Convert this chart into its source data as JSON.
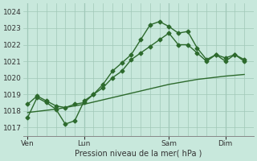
{
  "bg_color": "#c8e8dc",
  "grid_color": "#a0c8b8",
  "line_color": "#2d6a2d",
  "xlabel": "Pression niveau de la mer( hPa )",
  "ylim": [
    1016.5,
    1024.5
  ],
  "yticks": [
    1017,
    1018,
    1019,
    1020,
    1021,
    1022,
    1023,
    1024
  ],
  "xtick_labels": [
    "Ven",
    "Lun",
    "Sam",
    "Dim"
  ],
  "xtick_positions": [
    0,
    6,
    15,
    21
  ],
  "vline_major": [
    0,
    6,
    15,
    21
  ],
  "xlim": [
    -0.5,
    24
  ],
  "num_minor_vlines": 25,
  "series": [
    {
      "x": [
        0,
        1,
        2,
        3,
        4,
        5,
        6,
        7,
        8,
        9,
        10,
        11,
        12,
        13,
        14,
        15,
        16,
        17,
        18,
        19,
        20,
        21,
        22,
        23
      ],
      "y": [
        1017.6,
        1018.8,
        1018.5,
        1018.1,
        1017.2,
        1017.4,
        1018.6,
        1019.0,
        1019.6,
        1020.4,
        1020.9,
        1021.4,
        1022.3,
        1023.2,
        1023.4,
        1023.1,
        1022.7,
        1022.8,
        1021.8,
        1021.1,
        1021.4,
        1021.0,
        1021.4,
        1021.1
      ],
      "marker": "D",
      "ms": 2.5,
      "lw": 1.0
    },
    {
      "x": [
        0,
        1,
        2,
        3,
        4,
        5,
        6,
        7,
        8,
        9,
        10,
        11,
        12,
        13,
        14,
        15,
        16,
        17,
        18,
        19,
        20,
        21,
        22,
        23
      ],
      "y": [
        1018.4,
        1018.9,
        1018.6,
        1018.3,
        1018.2,
        1018.4,
        1018.5,
        1019.0,
        1019.4,
        1020.0,
        1020.4,
        1021.1,
        1021.5,
        1021.9,
        1022.3,
        1022.7,
        1022.0,
        1022.0,
        1021.5,
        1021.0,
        1021.4,
        1021.2,
        1021.4,
        1021.0
      ],
      "marker": "D",
      "ms": 2.5,
      "lw": 1.0
    },
    {
      "x": [
        0,
        3,
        6,
        9,
        12,
        15,
        18,
        21,
        23
      ],
      "y": [
        1017.9,
        1018.1,
        1018.4,
        1018.8,
        1019.2,
        1019.6,
        1019.9,
        1020.1,
        1020.2
      ],
      "marker": null,
      "ms": 0,
      "lw": 1.0
    }
  ]
}
